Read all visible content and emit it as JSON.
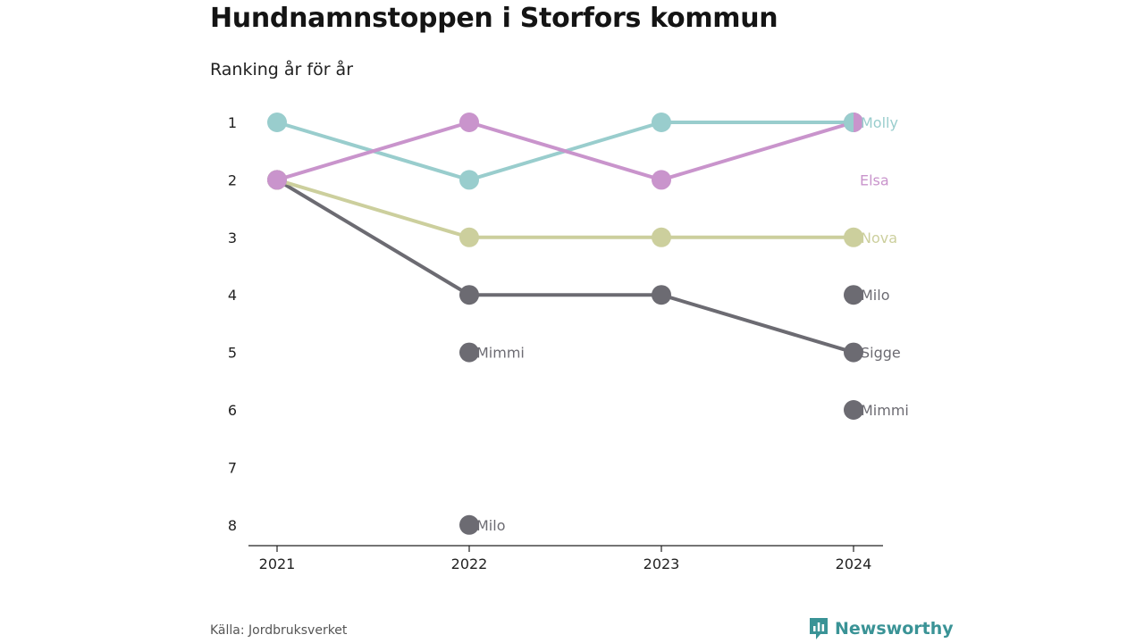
{
  "title": "Hundnamnstoppen i Storfors kommun",
  "subtitle": "Ranking år för år",
  "source": "Källa: Jordbruksverket",
  "brand": "Newsworthy",
  "colors": {
    "molly": "#99cdcd",
    "elsa": "#c994cc",
    "nova": "#cccf9d",
    "grey": "#6c6b72",
    "axis": "#222222",
    "brand": "#3a9396"
  },
  "chart_data": {
    "type": "line",
    "x": [
      "2021",
      "2022",
      "2023",
      "2024"
    ],
    "y_ticks": [
      1,
      2,
      3,
      4,
      5,
      6,
      7,
      8
    ],
    "ylim": [
      1,
      8
    ],
    "y_inverted": true,
    "series": [
      {
        "name": "Molly",
        "color_key": "molly",
        "ranks": [
          1,
          2,
          1,
          1
        ],
        "label": "Molly"
      },
      {
        "name": "Elsa",
        "color_key": "elsa",
        "ranks": [
          2,
          1,
          2,
          1
        ],
        "label": "Elsa"
      },
      {
        "name": "Nova",
        "color_key": "nova",
        "ranks": [
          2,
          3,
          3,
          3
        ],
        "label": "Nova"
      },
      {
        "name": "Sigge",
        "color_key": "grey",
        "ranks": [
          2,
          4,
          4,
          5
        ],
        "label": "Sigge"
      }
    ],
    "isolated_points": [
      {
        "x": "2022",
        "rank": 5,
        "label": "Mimmi"
      },
      {
        "x": "2022",
        "rank": 8,
        "label": "Milo"
      },
      {
        "x": "2024",
        "rank": 4,
        "label": "Milo"
      },
      {
        "x": "2024",
        "rank": 6,
        "label": "Mimmi"
      }
    ]
  }
}
